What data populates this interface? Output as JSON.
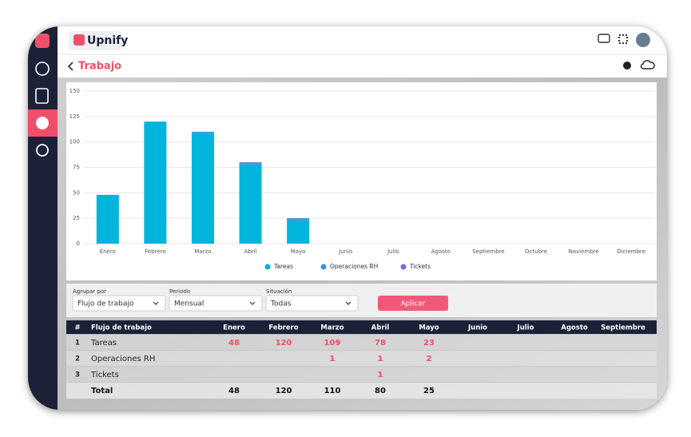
{
  "app": {
    "name": "Upnify"
  },
  "page": {
    "title": "Trabajo"
  },
  "chart_data": {
    "type": "bar",
    "stacked": true,
    "categories": [
      "Enero",
      "Febrero",
      "Marzo",
      "Abril",
      "Mayo",
      "Junio",
      "Julio",
      "Agosto",
      "Septiembre",
      "Octubre",
      "Noviembre",
      "Diciembre"
    ],
    "series": [
      {
        "name": "Tareas",
        "color": "#00b4dc",
        "values": [
          48,
          120,
          109,
          78,
          23,
          null,
          null,
          null,
          null,
          null,
          null,
          null
        ]
      },
      {
        "name": "Operaciones RH",
        "color": "#3d8fe0",
        "values": [
          null,
          null,
          1,
          1,
          2,
          null,
          null,
          null,
          null,
          null,
          null,
          null
        ]
      },
      {
        "name": "Tickets",
        "color": "#6b6fd6",
        "values": [
          null,
          null,
          null,
          1,
          null,
          null,
          null,
          null,
          null,
          null,
          null,
          null
        ]
      }
    ],
    "ylim": [
      0,
      150
    ],
    "yticks": [
      0,
      25,
      50,
      75,
      100,
      125,
      150
    ],
    "grid": true,
    "legend": "bottom"
  },
  "filters": [
    {
      "label": "Agrupar por",
      "value": "Flujo de trabajo"
    },
    {
      "label": "Periodo",
      "value": "Mensual"
    },
    {
      "label": "Situación",
      "value": "Todas"
    }
  ],
  "apply_button": "Aplicar",
  "table": {
    "header": [
      "#",
      "Flujo de trabajo",
      "Enero",
      "Febrero",
      "Marzo",
      "Abril",
      "Mayo",
      "Junio",
      "Julio",
      "Agosto",
      "Septiembre"
    ],
    "rows": [
      [
        1,
        "Tareas",
        48,
        120,
        109,
        78,
        23,
        null,
        null,
        null,
        null
      ],
      [
        2,
        "Operaciones RH",
        null,
        null,
        1,
        1,
        2,
        null,
        null,
        null,
        null
      ],
      [
        3,
        "Tickets",
        null,
        null,
        null,
        1,
        null,
        null,
        null,
        null,
        null
      ]
    ],
    "total": [
      null,
      "Total",
      48,
      120,
      110,
      80,
      25,
      null,
      null,
      null,
      null
    ]
  }
}
